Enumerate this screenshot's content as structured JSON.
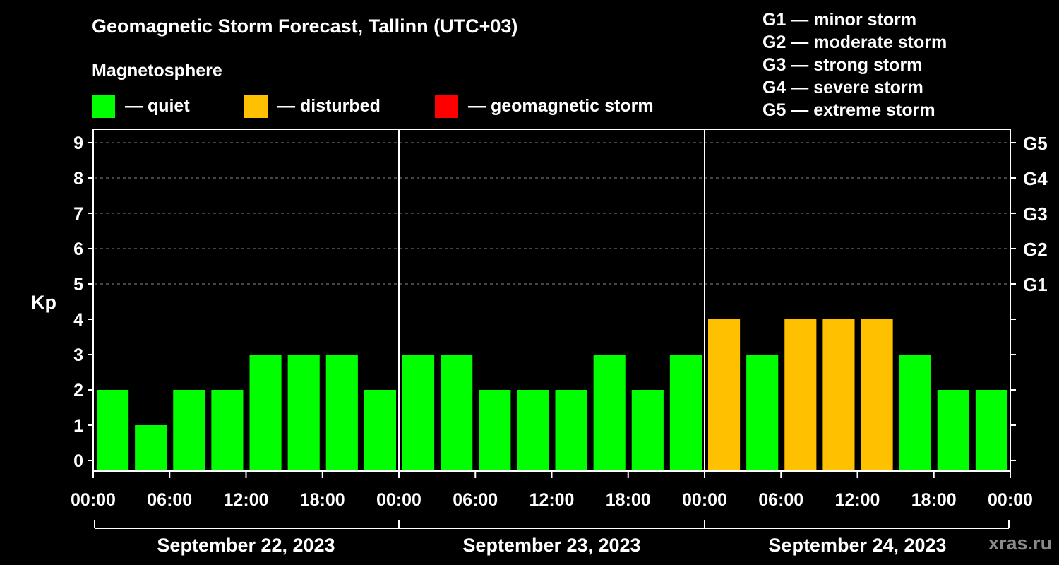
{
  "title": "Geomagnetic Storm Forecast, Tallinn (UTC+03)",
  "legend": {
    "title": "Magnetosphere",
    "items": [
      {
        "label": "— quiet",
        "color": "#00ff00"
      },
      {
        "label": "— disturbed",
        "color": "#ffc000"
      },
      {
        "label": "— geomagnetic storm",
        "color": "#ff0000"
      }
    ]
  },
  "g_scale": [
    "G1 — minor storm",
    "G2 — moderate storm",
    "G3 — strong storm",
    "G4 — severe storm",
    "G5 — extreme storm"
  ],
  "watermark": "xras.ru",
  "chart_data": {
    "type": "bar",
    "ylabel": "Kp",
    "ylim": [
      0,
      9
    ],
    "yticks": [
      "0",
      "1",
      "2",
      "3",
      "4",
      "5",
      "6",
      "7",
      "8",
      "9"
    ],
    "right_ticks": [
      {
        "kp": 5,
        "label": "G1"
      },
      {
        "kp": 6,
        "label": "G2"
      },
      {
        "kp": 7,
        "label": "G3"
      },
      {
        "kp": 8,
        "label": "G4"
      },
      {
        "kp": 9,
        "label": "G5"
      }
    ],
    "grid": "dashed horizontal at Kp 5-9",
    "xtick_labels": [
      "00:00",
      "06:00",
      "12:00",
      "18:00",
      "00:00",
      "06:00",
      "12:00",
      "18:00",
      "00:00",
      "06:00",
      "12:00",
      "18:00",
      "00:00"
    ],
    "days": [
      "September 22, 2023",
      "September 23, 2023",
      "September 24, 2023"
    ],
    "values": [
      2,
      1,
      2,
      2,
      3,
      3,
      3,
      2,
      3,
      3,
      2,
      2,
      2,
      3,
      2,
      3,
      4,
      3,
      4,
      4,
      4,
      3,
      2,
      2
    ],
    "status": [
      "quiet",
      "quiet",
      "quiet",
      "quiet",
      "quiet",
      "quiet",
      "quiet",
      "quiet",
      "quiet",
      "quiet",
      "quiet",
      "quiet",
      "quiet",
      "quiet",
      "quiet",
      "quiet",
      "disturbed",
      "quiet",
      "disturbed",
      "disturbed",
      "disturbed",
      "quiet",
      "quiet",
      "quiet"
    ],
    "colors": {
      "quiet": "#00ff00",
      "disturbed": "#ffc000",
      "storm": "#ff0000"
    }
  }
}
